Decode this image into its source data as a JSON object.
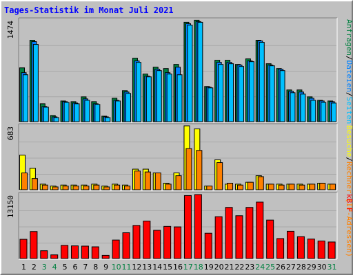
{
  "chart_data": {
    "type": "bar",
    "title": "Tages-Statistik im Monat Juli 2021",
    "categories": [
      "1",
      "2",
      "3",
      "4",
      "5",
      "6",
      "7",
      "8",
      "9",
      "10",
      "11",
      "12",
      "13",
      "14",
      "15",
      "16",
      "17",
      "18",
      "19",
      "20",
      "21",
      "22",
      "23",
      "24",
      "25",
      "26",
      "27",
      "28",
      "29",
      "30",
      "31"
    ],
    "weekend_days": [
      "3",
      "4",
      "10",
      "11",
      "17",
      "18",
      "24",
      "25",
      "31"
    ],
    "panels": [
      {
        "name": "requests",
        "ymax_label": "1474",
        "ymax": 1474,
        "side_label": {
          "parts": [
            "Anfragen",
            "/",
            "Dateien",
            "/",
            "Seiten"
          ],
          "colors": [
            "#008040",
            "#000000",
            "#0080ff",
            "#000000",
            "#00c0ff"
          ]
        },
        "series": [
          {
            "name": "Anfragen",
            "color": "#008040",
            "values": [
              780,
              1180,
              260,
              90,
              300,
              290,
              360,
              290,
              80,
              340,
              450,
              920,
              690,
              790,
              770,
              830,
              1440,
              1470,
              510,
              890,
              890,
              830,
              910,
              1180,
              840,
              770,
              460,
              460,
              360,
              310,
              300
            ]
          },
          {
            "name": "Dateien",
            "color": "#0080ff",
            "values": [
              710,
              1160,
              220,
              70,
              290,
              270,
              330,
              260,
              70,
              310,
              430,
              880,
              660,
              760,
              710,
              790,
              1420,
              1450,
              500,
              860,
              860,
              820,
              880,
              1170,
              820,
              760,
              440,
              430,
              340,
              300,
              290
            ]
          },
          {
            "name": "Seiten",
            "color": "#00c0ff",
            "values": [
              680,
              1120,
              210,
              60,
              280,
              260,
              310,
              250,
              60,
              300,
              410,
              860,
              650,
              740,
              690,
              680,
              1400,
              1440,
              490,
              830,
              840,
              800,
              870,
              1150,
              810,
              740,
              420,
              400,
              310,
              280,
              270
            ]
          }
        ]
      },
      {
        "name": "hosts",
        "ymax_label": "683",
        "ymax": 683,
        "side_label": {
          "parts": [
            "Besuche",
            "/",
            "Rechner (IP-Adressen)"
          ],
          "colors": [
            "#ffff00",
            "#000000",
            "#ff8000"
          ]
        },
        "series": [
          {
            "name": "Besuche",
            "color": "#ffff00",
            "values": [
              370,
              230,
              60,
              40,
              50,
              50,
              50,
              60,
              40,
              60,
              50,
              220,
              220,
              180,
              70,
              180,
              683,
              650,
              40,
              320,
              60,
              60,
              80,
              150,
              60,
              60,
              60,
              60,
              60,
              70,
              60
            ]
          },
          {
            "name": "Rechner (IP-Adressen)",
            "color": "#ff8000",
            "values": [
              180,
              120,
              50,
              30,
              40,
              40,
              40,
              50,
              30,
              50,
              40,
              200,
              190,
              180,
              60,
              150,
              440,
              420,
              40,
              290,
              70,
              50,
              80,
              140,
              60,
              50,
              60,
              50,
              60,
              70,
              60
            ]
          }
        ]
      },
      {
        "name": "kbytes",
        "ymax_label": "13150",
        "ymax": 13150,
        "side_label": {
          "parts": [
            "kB F"
          ],
          "colors": [
            "#ff0000"
          ]
        },
        "series": [
          {
            "name": "kB F",
            "color": "#ff0000",
            "values": [
              3950,
              5550,
              1600,
              750,
              2700,
              2600,
              2550,
              2400,
              650,
              3800,
              5300,
              6800,
              7700,
              5800,
              6600,
              6500,
              12950,
              13150,
              5200,
              8600,
              10500,
              8800,
              10500,
              11600,
              7900,
              4100,
              5600,
              4500,
              4000,
              3600,
              3400
            ]
          }
        ]
      }
    ]
  }
}
